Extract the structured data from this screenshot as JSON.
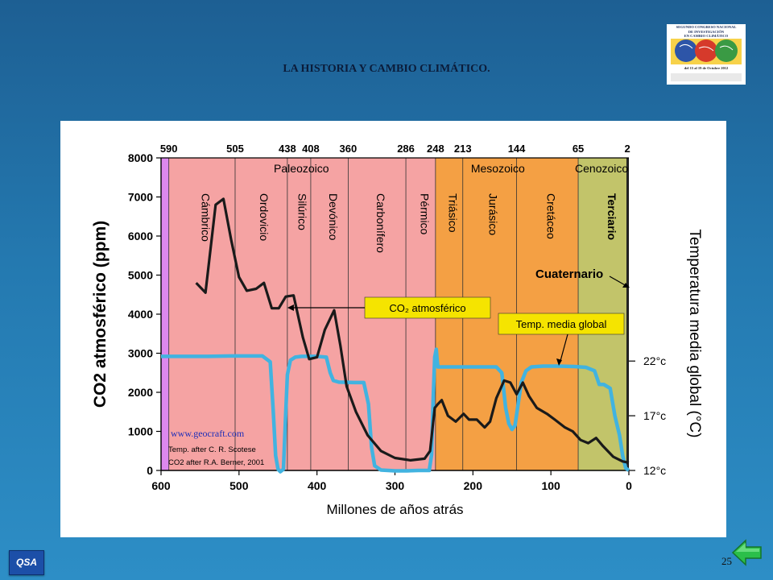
{
  "slide": {
    "title": "LA HISTORIA Y CAMBIO CLIMÁTICO.",
    "page_number": "25",
    "qsa_label": "QSA",
    "logo": {
      "lines": [
        "SEGUNDO CONGRESO NACIONAL",
        "DE INVESTIGACIÓN",
        "EN CAMBIO CLIMÁTICO"
      ],
      "date": "del 15 al 19 de Octubre 2012"
    }
  },
  "colors": {
    "co2_line": "#1a1a1a",
    "temp_line": "#41b3e0",
    "paleozoic": "#f5a3a3",
    "mesozoic": "#f4a044",
    "cenozoic_terciario": "#c2c46a",
    "precambrian_strip": "#dd88ee",
    "callout_yellow": "#f5e400"
  },
  "chart_data": {
    "type": "line",
    "xlabel": "Millones de años atrás",
    "ylabel": "CO2 atmosférico (ppm)",
    "y2label": "Temperatura media global (°C)",
    "xlim": [
      600,
      0
    ],
    "ylim": [
      0,
      8000
    ],
    "x_ticks": [
      600,
      500,
      400,
      300,
      200,
      100,
      0
    ],
    "y_ticks": [
      0,
      1000,
      2000,
      3000,
      4000,
      5000,
      6000,
      7000,
      8000
    ],
    "y2_ticks": [
      {
        "label": "12°c",
        "y": 0
      },
      {
        "label": "17°c",
        "y": 1400
      },
      {
        "label": "22°c",
        "y": 2800
      }
    ],
    "top_boundaries": [
      {
        "label": "590",
        "x": 590
      },
      {
        "label": "505",
        "x": 505
      },
      {
        "label": "438",
        "x": 438
      },
      {
        "label": "408",
        "x": 408
      },
      {
        "label": "360",
        "x": 360
      },
      {
        "label": "286",
        "x": 286
      },
      {
        "label": "248",
        "x": 248
      },
      {
        "label": "213",
        "x": 213
      },
      {
        "label": "144",
        "x": 144
      },
      {
        "label": "65",
        "x": 65
      },
      {
        "label": "2",
        "x": 2
      }
    ],
    "eras": [
      {
        "label": "Paleozoico",
        "x": 420
      },
      {
        "label": "Mesozoico",
        "x": 168
      },
      {
        "label": "Cenozoico",
        "x": 35
      }
    ],
    "periods": [
      {
        "label": "Cámbrico",
        "x": 548,
        "bold": false
      },
      {
        "label": "Ordovicio",
        "x": 473,
        "bold": false
      },
      {
        "label": "Silúrico",
        "x": 424,
        "bold": false
      },
      {
        "label": "Devónico",
        "x": 384,
        "bold": false
      },
      {
        "label": "Carbonífero",
        "x": 323,
        "bold": false
      },
      {
        "label": "Pérmico",
        "x": 267,
        "bold": false
      },
      {
        "label": "Triásico",
        "x": 231,
        "bold": false
      },
      {
        "label": "Jurásico",
        "x": 179,
        "bold": false
      },
      {
        "label": "Cretáceo",
        "x": 105,
        "bold": false
      },
      {
        "label": "Terciario",
        "x": 27,
        "bold": true
      }
    ],
    "series": [
      {
        "name": "CO₂ atmosférico",
        "axis": "left",
        "points": [
          [
            555,
            4800
          ],
          [
            543,
            4550
          ],
          [
            530,
            6800
          ],
          [
            520,
            6950
          ],
          [
            510,
            5900
          ],
          [
            500,
            4950
          ],
          [
            490,
            4600
          ],
          [
            478,
            4650
          ],
          [
            468,
            4800
          ],
          [
            458,
            4150
          ],
          [
            449,
            4150
          ],
          [
            440,
            4450
          ],
          [
            430,
            4480
          ],
          [
            418,
            3400
          ],
          [
            410,
            2850
          ],
          [
            400,
            2900
          ],
          [
            390,
            3600
          ],
          [
            378,
            4100
          ],
          [
            370,
            3200
          ],
          [
            362,
            2150
          ],
          [
            350,
            1500
          ],
          [
            335,
            900
          ],
          [
            318,
            500
          ],
          [
            300,
            320
          ],
          [
            280,
            260
          ],
          [
            262,
            300
          ],
          [
            255,
            500
          ],
          [
            249,
            1600
          ],
          [
            245,
            1700
          ],
          [
            240,
            1800
          ],
          [
            232,
            1400
          ],
          [
            222,
            1250
          ],
          [
            212,
            1450
          ],
          [
            205,
            1300
          ],
          [
            195,
            1300
          ],
          [
            185,
            1100
          ],
          [
            178,
            1250
          ],
          [
            170,
            1850
          ],
          [
            160,
            2300
          ],
          [
            152,
            2250
          ],
          [
            144,
            1950
          ],
          [
            136,
            2250
          ],
          [
            128,
            1900
          ],
          [
            118,
            1600
          ],
          [
            105,
            1450
          ],
          [
            95,
            1300
          ],
          [
            82,
            1100
          ],
          [
            72,
            1000
          ],
          [
            62,
            780
          ],
          [
            52,
            700
          ],
          [
            42,
            830
          ],
          [
            33,
            620
          ],
          [
            20,
            350
          ],
          [
            8,
            230
          ],
          [
            0,
            200
          ]
        ]
      },
      {
        "name": "Temp. media global",
        "axis": "right",
        "points": [
          [
            600,
            2920
          ],
          [
            570,
            2920
          ],
          [
            540,
            2920
          ],
          [
            510,
            2930
          ],
          [
            470,
            2930
          ],
          [
            460,
            2780
          ],
          [
            456,
            1500
          ],
          [
            453,
            380
          ],
          [
            450,
            30
          ],
          [
            447,
            -30
          ],
          [
            443,
            30
          ],
          [
            440,
            1500
          ],
          [
            438,
            2450
          ],
          [
            434,
            2820
          ],
          [
            428,
            2900
          ],
          [
            420,
            2920
          ],
          [
            400,
            2920
          ],
          [
            388,
            2900
          ],
          [
            383,
            2500
          ],
          [
            379,
            2300
          ],
          [
            372,
            2260
          ],
          [
            352,
            2250
          ],
          [
            340,
            2250
          ],
          [
            334,
            1700
          ],
          [
            330,
            600
          ],
          [
            326,
            120
          ],
          [
            318,
            10
          ],
          [
            300,
            -10
          ],
          [
            285,
            -10
          ],
          [
            270,
            0
          ],
          [
            256,
            0
          ],
          [
            253,
            400
          ],
          [
            251,
            1800
          ],
          [
            249,
            2900
          ],
          [
            247,
            3100
          ],
          [
            246,
            2850
          ],
          [
            245,
            2650
          ],
          [
            230,
            2650
          ],
          [
            215,
            2650
          ],
          [
            200,
            2650
          ],
          [
            180,
            2650
          ],
          [
            170,
            2650
          ],
          [
            163,
            2500
          ],
          [
            158,
            1600
          ],
          [
            154,
            1200
          ],
          [
            150,
            1050
          ],
          [
            146,
            1150
          ],
          [
            142,
            1700
          ],
          [
            138,
            2250
          ],
          [
            132,
            2550
          ],
          [
            125,
            2650
          ],
          [
            110,
            2670
          ],
          [
            90,
            2670
          ],
          [
            70,
            2660
          ],
          [
            55,
            2640
          ],
          [
            44,
            2550
          ],
          [
            38,
            2200
          ],
          [
            32,
            2200
          ],
          [
            24,
            2100
          ],
          [
            18,
            1400
          ],
          [
            12,
            900
          ],
          [
            8,
            380
          ],
          [
            4,
            60
          ],
          [
            0,
            0
          ]
        ]
      }
    ],
    "annotations": [
      {
        "label": "CO₂ atmosférico",
        "kind": "callout"
      },
      {
        "label": "Temp. media global",
        "kind": "callout"
      },
      {
        "label": "Cuaternario",
        "kind": "text"
      }
    ],
    "source_credits": [
      "www.geocraft.com",
      "Temp. after C. R. Scotese",
      "CO2 after R.A. Berner, 2001"
    ]
  }
}
